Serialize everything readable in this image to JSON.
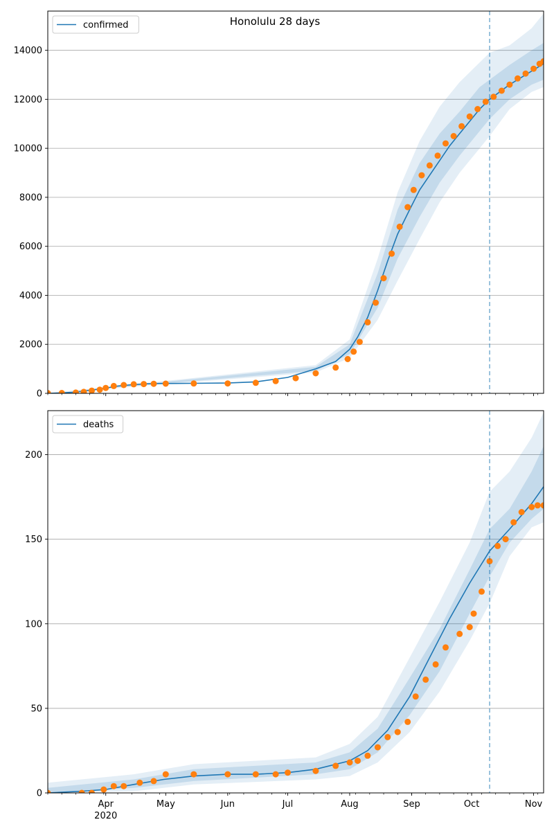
{
  "title": "Honolulu 28 days",
  "colors": {
    "model": "#1f77b4",
    "observed": "#ff7f0e",
    "band": "#1f77b4",
    "grid": "#b0b0b0",
    "forecast_line": "#1f77b4"
  },
  "x_axis": {
    "months": [
      "Apr",
      "May",
      "Jun",
      "Jul",
      "Aug",
      "Sep",
      "Oct",
      "Nov"
    ],
    "year_label": "2020",
    "range": [
      "2020-03-03",
      "2020-11-06"
    ]
  },
  "chart_data": [
    {
      "type": "line",
      "panel": "top",
      "legend": "confirmed",
      "legend_position": "top-left",
      "grid": "horizontal",
      "ylim": [
        0,
        15600
      ],
      "yticks": [
        0,
        2000,
        4000,
        6000,
        8000,
        10000,
        12000,
        14000
      ],
      "forecast_start": "2020-10-10",
      "series": [
        {
          "kind": "model",
          "x": [
            "2020-03-03",
            "2020-03-10",
            "2020-03-17",
            "2020-03-24",
            "2020-03-31",
            "2020-04-07",
            "2020-04-14",
            "2020-04-21",
            "2020-04-28",
            "2020-05-15",
            "2020-06-01",
            "2020-06-15",
            "2020-07-01",
            "2020-07-15",
            "2020-07-25",
            "2020-08-01",
            "2020-08-05",
            "2020-08-10",
            "2020-08-15",
            "2020-08-20",
            "2020-08-25",
            "2020-08-31",
            "2020-09-05",
            "2020-09-10",
            "2020-09-15",
            "2020-09-20",
            "2020-09-25",
            "2020-09-30",
            "2020-10-05",
            "2020-10-10",
            "2020-10-15",
            "2020-10-20",
            "2020-10-25",
            "2020-10-31",
            "2020-11-06"
          ],
          "values": [
            0,
            20,
            50,
            120,
            200,
            300,
            350,
            390,
            400,
            410,
            420,
            470,
            650,
            1000,
            1300,
            1800,
            2300,
            3100,
            4200,
            5400,
            6500,
            7500,
            8300,
            8900,
            9500,
            10100,
            10600,
            11100,
            11600,
            12000,
            12300,
            12600,
            12850,
            13150,
            13450
          ]
        },
        {
          "kind": "observed",
          "x": [
            "2020-03-03",
            "2020-03-10",
            "2020-03-17",
            "2020-03-21",
            "2020-03-25",
            "2020-03-29",
            "2020-04-01",
            "2020-04-05",
            "2020-04-10",
            "2020-04-15",
            "2020-04-20",
            "2020-04-25",
            "2020-05-01",
            "2020-05-15",
            "2020-06-01",
            "2020-06-15",
            "2020-06-25",
            "2020-07-05",
            "2020-07-15",
            "2020-07-25",
            "2020-07-31",
            "2020-08-03",
            "2020-08-06",
            "2020-08-10",
            "2020-08-14",
            "2020-08-18",
            "2020-08-22",
            "2020-08-26",
            "2020-08-30",
            "2020-09-02",
            "2020-09-06",
            "2020-09-10",
            "2020-09-14",
            "2020-09-18",
            "2020-09-22",
            "2020-09-26",
            "2020-09-30",
            "2020-10-04",
            "2020-10-08",
            "2020-10-12",
            "2020-10-16",
            "2020-10-20",
            "2020-10-24",
            "2020-10-28",
            "2020-11-01",
            "2020-11-04",
            "2020-11-06"
          ],
          "values": [
            10,
            15,
            30,
            60,
            110,
            150,
            220,
            300,
            340,
            370,
            380,
            390,
            395,
            400,
            405,
            430,
            500,
            620,
            820,
            1050,
            1400,
            1700,
            2100,
            2900,
            3700,
            4700,
            5700,
            6800,
            7600,
            8300,
            8900,
            9300,
            9700,
            10200,
            10500,
            10900,
            11300,
            11600,
            11900,
            12100,
            12350,
            12600,
            12850,
            13050,
            13250,
            13450,
            13550
          ]
        }
      ],
      "bands": [
        {
          "x": [
            "2020-03-03",
            "2020-07-15",
            "2020-08-01",
            "2020-08-15",
            "2020-08-25",
            "2020-09-05",
            "2020-09-15",
            "2020-09-25",
            "2020-10-05",
            "2020-10-10",
            "2020-10-20",
            "2020-10-31",
            "2020-11-06"
          ],
          "lower": [
            0,
            850,
            1450,
            3000,
            4600,
            6300,
            7800,
            9000,
            10000,
            10500,
            11600,
            12300,
            12500
          ],
          "upper": [
            0,
            1150,
            2200,
            5500,
            8200,
            10300,
            11700,
            12700,
            13500,
            13900,
            14200,
            14900,
            15500
          ]
        },
        {
          "x": [
            "2020-03-03",
            "2020-07-15",
            "2020-08-01",
            "2020-08-15",
            "2020-08-25",
            "2020-09-05",
            "2020-09-15",
            "2020-09-25",
            "2020-10-05",
            "2020-10-10",
            "2020-10-20",
            "2020-10-31",
            "2020-11-06"
          ],
          "lower": [
            0,
            920,
            1600,
            3500,
            5500,
            7200,
            8600,
            9700,
            10700,
            11200,
            12000,
            12600,
            12800
          ],
          "upper": [
            0,
            1080,
            2000,
            4900,
            7500,
            9400,
            10600,
            11500,
            12500,
            12800,
            13400,
            14000,
            14300
          ]
        }
      ]
    },
    {
      "type": "line",
      "panel": "bottom",
      "legend": "deaths",
      "legend_position": "top-left",
      "grid": "horizontal",
      "ylim": [
        0,
        226
      ],
      "yticks": [
        0,
        50,
        100,
        150,
        200
      ],
      "forecast_start": "2020-10-10",
      "series": [
        {
          "kind": "model",
          "x": [
            "2020-03-03",
            "2020-03-20",
            "2020-04-01",
            "2020-04-15",
            "2020-04-30",
            "2020-05-15",
            "2020-06-01",
            "2020-06-15",
            "2020-07-01",
            "2020-07-15",
            "2020-08-01",
            "2020-08-10",
            "2020-08-20",
            "2020-08-31",
            "2020-09-10",
            "2020-09-20",
            "2020-09-30",
            "2020-10-10",
            "2020-10-20",
            "2020-10-31",
            "2020-11-06"
          ],
          "values": [
            0,
            1,
            2,
            5,
            8,
            10,
            11,
            11,
            12,
            14,
            19,
            25,
            37,
            57,
            80,
            103,
            124,
            143,
            156,
            171,
            181
          ]
        },
        {
          "kind": "observed",
          "x": [
            "2020-03-03",
            "2020-03-20",
            "2020-03-25",
            "2020-03-31",
            "2020-04-05",
            "2020-04-10",
            "2020-04-18",
            "2020-04-25",
            "2020-05-01",
            "2020-05-15",
            "2020-06-01",
            "2020-06-15",
            "2020-06-25",
            "2020-07-01",
            "2020-07-15",
            "2020-07-25",
            "2020-08-01",
            "2020-08-05",
            "2020-08-10",
            "2020-08-15",
            "2020-08-20",
            "2020-08-25",
            "2020-08-30",
            "2020-09-03",
            "2020-09-08",
            "2020-09-13",
            "2020-09-18",
            "2020-09-25",
            "2020-09-30",
            "2020-10-02",
            "2020-10-06",
            "2020-10-10",
            "2020-10-14",
            "2020-10-18",
            "2020-10-22",
            "2020-10-26",
            "2020-10-31",
            "2020-11-03",
            "2020-11-06"
          ],
          "values": [
            0,
            0,
            0,
            2,
            4,
            4,
            6,
            7,
            11,
            11,
            11,
            11,
            11,
            12,
            13,
            16,
            18,
            19,
            22,
            27,
            33,
            36,
            42,
            57,
            67,
            76,
            86,
            94,
            98,
            106,
            119,
            137,
            146,
            150,
            160,
            166,
            169,
            170,
            170
          ]
        }
      ],
      "bands": [
        {
          "x": [
            "2020-03-03",
            "2020-04-15",
            "2020-05-15",
            "2020-07-15",
            "2020-08-01",
            "2020-08-15",
            "2020-08-31",
            "2020-09-15",
            "2020-09-30",
            "2020-10-10",
            "2020-10-20",
            "2020-10-31",
            "2020-11-06"
          ],
          "lower": [
            0,
            1,
            5,
            8,
            10,
            18,
            36,
            60,
            90,
            112,
            140,
            157,
            160
          ],
          "upper": [
            6,
            11,
            17,
            21,
            29,
            45,
            80,
            113,
            148,
            178,
            190,
            210,
            225
          ]
        },
        {
          "x": [
            "2020-03-03",
            "2020-04-15",
            "2020-05-15",
            "2020-07-15",
            "2020-08-01",
            "2020-08-15",
            "2020-08-31",
            "2020-09-15",
            "2020-09-30",
            "2020-10-10",
            "2020-10-20",
            "2020-10-31",
            "2020-11-06"
          ],
          "lower": [
            0,
            3,
            7,
            11,
            14,
            24,
            46,
            72,
            106,
            128,
            148,
            162,
            168
          ],
          "upper": [
            3,
            8,
            14,
            18,
            24,
            38,
            68,
            97,
            132,
            156,
            168,
            190,
            205
          ]
        }
      ]
    }
  ]
}
